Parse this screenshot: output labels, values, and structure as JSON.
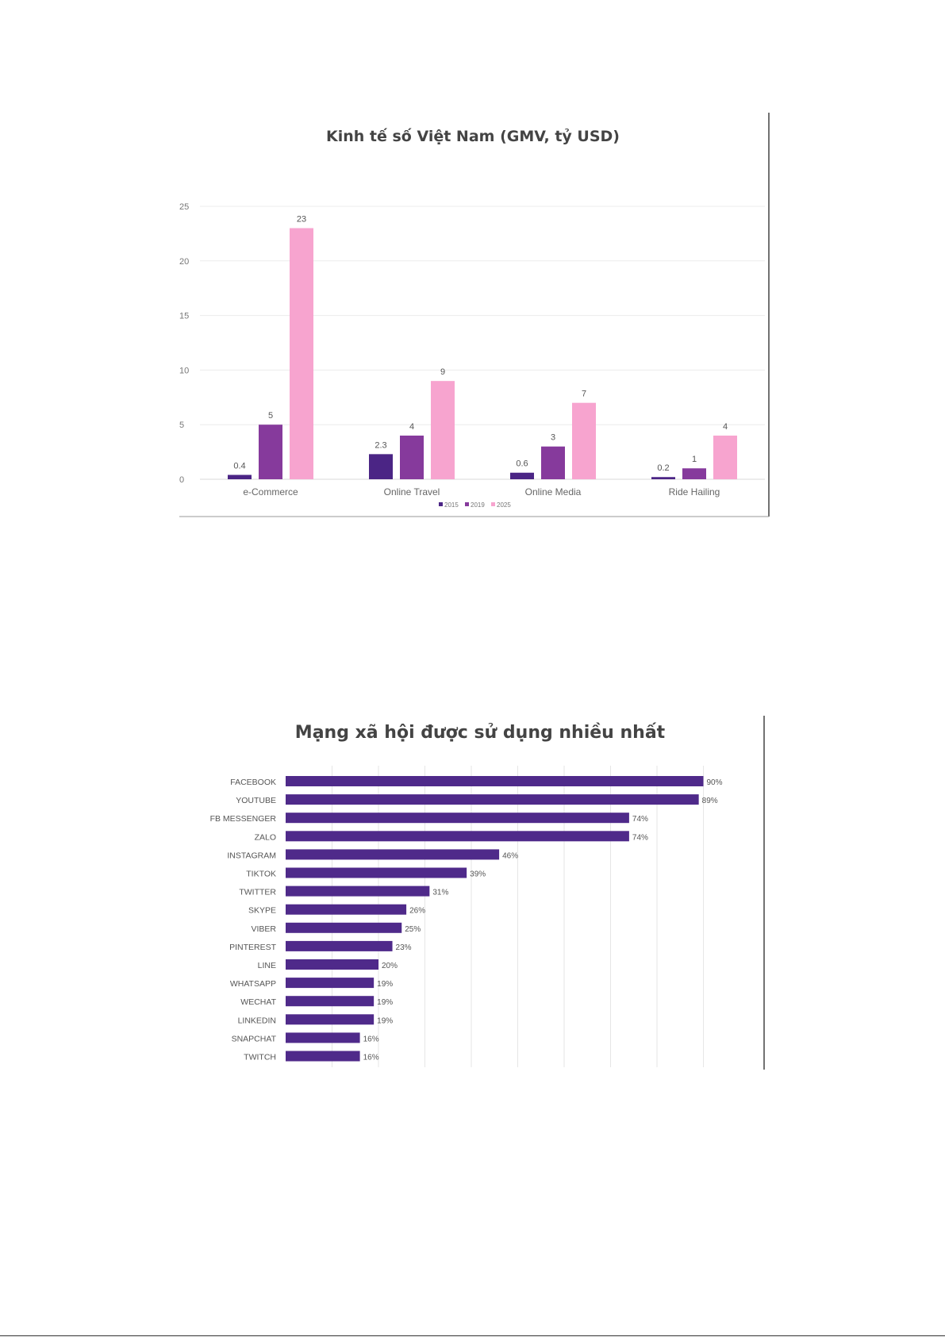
{
  "chart_data": [
    {
      "type": "bar",
      "title": "Kinh tế số Việt Nam (GMV, tỷ USD)",
      "categories": [
        "e-Commerce",
        "Online Travel",
        "Online Media",
        "Ride Hailing"
      ],
      "series": [
        {
          "name": "2015",
          "values": [
            0.4,
            2.3,
            0.6,
            0.2
          ],
          "color": "#4b2585"
        },
        {
          "name": "2019",
          "values": [
            5,
            4,
            3,
            1
          ],
          "color": "#863a9c"
        },
        {
          "name": "2025",
          "values": [
            23,
            9,
            7,
            4
          ],
          "color": "#f7a4cf"
        }
      ],
      "data_labels": [
        [
          "0.4",
          "2.3",
          "0.6",
          "0.2"
        ],
        [
          "5",
          "4",
          "3",
          "1"
        ],
        [
          "23",
          "9",
          "7",
          "4"
        ]
      ],
      "ylim": [
        0,
        25
      ],
      "yticks": [
        "0",
        "5",
        "10",
        "15",
        "20",
        "25"
      ],
      "grid": true,
      "legend_position": "bottom",
      "xlabel": "",
      "ylabel": ""
    },
    {
      "type": "bar",
      "orientation": "horizontal",
      "title": "Mạng xã hội được sử dụng nhiều nhất",
      "categories": [
        "FACEBOOK",
        "YOUTUBE",
        "FB MESSENGER",
        "ZALO",
        "INSTAGRAM",
        "TIKTOK",
        "TWITTER",
        "SKYPE",
        "VIBER",
        "PINTEREST",
        "LINE",
        "WHATSAPP",
        "WECHAT",
        "LINKEDIN",
        "SNAPCHAT",
        "TWITCH"
      ],
      "values": [
        90,
        89,
        74,
        74,
        46,
        39,
        31,
        26,
        25,
        23,
        20,
        19,
        19,
        19,
        16,
        16
      ],
      "value_labels": [
        "90%",
        "89%",
        "74%",
        "74%",
        "46%",
        "39%",
        "31%",
        "26%",
        "25%",
        "23%",
        "20%",
        "19%",
        "19%",
        "19%",
        "16%",
        "16%"
      ],
      "color": "#4f2a8a",
      "xlim": [
        0,
        100
      ],
      "grid": true,
      "xlabel": "",
      "ylabel": ""
    }
  ]
}
